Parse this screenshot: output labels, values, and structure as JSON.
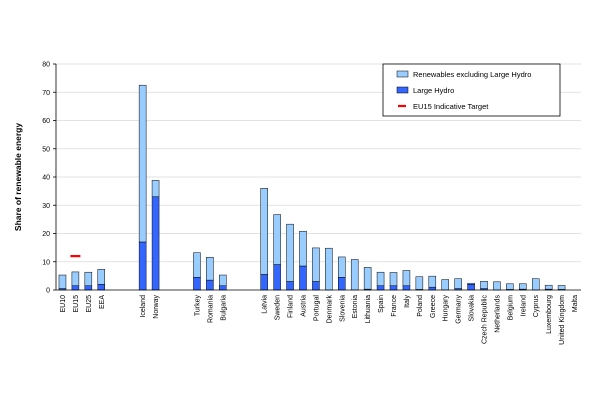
{
  "chart_data": {
    "type": "bar",
    "stacked": true,
    "ylabel": "Share of renewable energy",
    "xlabel": "",
    "ylim": [
      0,
      80
    ],
    "yticks": [
      0,
      10,
      20,
      30,
      40,
      50,
      60,
      70,
      80
    ],
    "grid": "horizontal",
    "legend_position": "top-right",
    "groups": [
      [
        "EU10",
        "EU15",
        "EU25",
        "EEA"
      ],
      [
        "Iceland",
        "Norway"
      ],
      [
        "Turkey",
        "Romania",
        "Bulgaria"
      ],
      [
        "Latvia",
        "Sweden",
        "Finland",
        "Austria",
        "Portugal",
        "Denmark",
        "Slovenia",
        "Estonia",
        "Lithuania",
        "Spain",
        "France",
        "Italy",
        "Poland",
        "Greece",
        "Hungary",
        "Germany",
        "Slovakia",
        "Czech Republic",
        "Netherlands",
        "Belgium",
        "Ireland",
        "Cyprus",
        "Luxembourg",
        "United Kingdom",
        "Malta"
      ]
    ],
    "categories": [
      "EU10",
      "EU15",
      "EU25",
      "EEA",
      "Iceland",
      "Norway",
      "Turkey",
      "Romania",
      "Bulgaria",
      "Latvia",
      "Sweden",
      "Finland",
      "Austria",
      "Portugal",
      "Denmark",
      "Slovenia",
      "Estonia",
      "Lithuania",
      "Spain",
      "France",
      "Italy",
      "Poland",
      "Greece",
      "Hungary",
      "Germany",
      "Slovakia",
      "Czech Republic",
      "Netherlands",
      "Belgium",
      "Ireland",
      "Cyprus",
      "Luxembourg",
      "United Kingdom",
      "Malta"
    ],
    "series": [
      {
        "name": "Large Hydro",
        "color": "#3366ff",
        "values": [
          0.5,
          1.5,
          1.5,
          2.0,
          17.0,
          33.0,
          4.5,
          3.5,
          1.5,
          5.5,
          9.0,
          3.0,
          8.5,
          3.0,
          0,
          4.5,
          0,
          0.3,
          1.5,
          1.5,
          1.5,
          0.2,
          1.0,
          0,
          0.5,
          2.0,
          0.5,
          0,
          0.2,
          0.3,
          0,
          0.3,
          0.2,
          0
        ]
      },
      {
        "name": "Renewables excluding Large Hydro",
        "color": "#99ccff",
        "values": [
          4.8,
          4.9,
          4.8,
          5.3,
          55.5,
          5.8,
          8.7,
          8.1,
          3.8,
          30.5,
          17.7,
          20.3,
          12.3,
          11.9,
          14.8,
          7.2,
          10.8,
          7.7,
          4.8,
          4.7,
          5.4,
          4.5,
          3.9,
          3.7,
          3.5,
          0.4,
          2.6,
          2.9,
          2.0,
          1.9,
          4.0,
          1.4,
          1.4,
          0
        ]
      }
    ],
    "target": {
      "name": "EU15 Indicative Target",
      "category": "EU15",
      "value": 12.0,
      "color": "#ff0000"
    }
  }
}
